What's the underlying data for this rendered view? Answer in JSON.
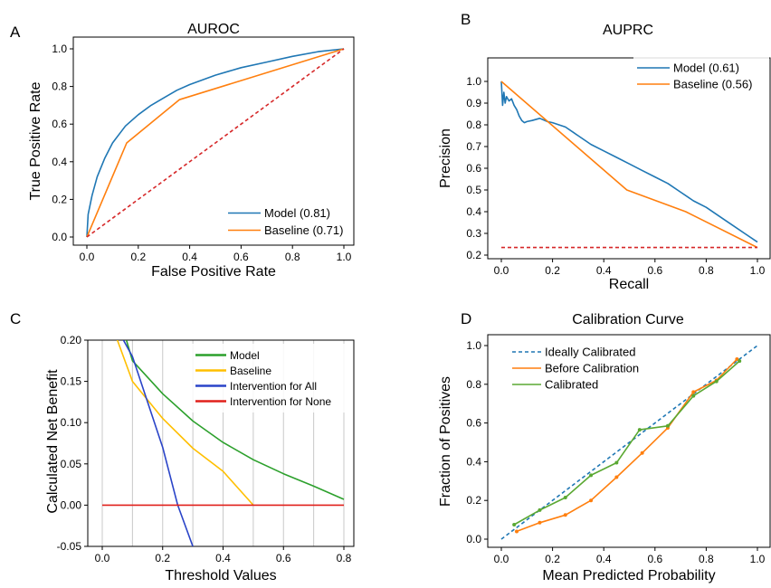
{
  "panels": {
    "A": {
      "letter": "A",
      "title": "AUROC",
      "xlabel": "False Positive Rate",
      "ylabel": "True Positive Rate"
    },
    "B": {
      "letter": "B",
      "title": "AUPRC",
      "xlabel": "Recall",
      "ylabel": "Precision"
    },
    "C": {
      "letter": "C",
      "title": "",
      "xlabel": "Threshold Values",
      "ylabel": "Calculated Net Benefit"
    },
    "D": {
      "letter": "D",
      "title": "Calibration Curve",
      "xlabel": "Mean Predicted Probability",
      "ylabel": "Fraction of Positives"
    }
  },
  "chart_data": [
    {
      "type": "line",
      "title": "AUROC",
      "xlabel": "False Positive Rate",
      "ylabel": "True Positive Rate",
      "xlim": [
        0,
        1
      ],
      "ylim": [
        0,
        1
      ],
      "xticks": [
        "0.0",
        "0.2",
        "0.4",
        "0.6",
        "0.8",
        "1.0"
      ],
      "yticks": [
        "0.0",
        "0.2",
        "0.4",
        "0.6",
        "0.8",
        "1.0"
      ],
      "legend_position": "lower-right",
      "series": [
        {
          "name": "Model (0.81)",
          "color": "#1f77b4",
          "x": [
            0,
            0.005,
            0.02,
            0.04,
            0.07,
            0.1,
            0.15,
            0.2,
            0.25,
            0.3,
            0.35,
            0.4,
            0.5,
            0.6,
            0.7,
            0.8,
            0.9,
            1.0
          ],
          "y": [
            0,
            0.12,
            0.22,
            0.32,
            0.42,
            0.5,
            0.59,
            0.65,
            0.7,
            0.74,
            0.78,
            0.81,
            0.86,
            0.9,
            0.93,
            0.96,
            0.985,
            1.0
          ]
        },
        {
          "name": "Baseline (0.71)",
          "color": "#ff7f0e",
          "x": [
            0,
            0.155,
            0.36,
            1.0
          ],
          "y": [
            0,
            0.5,
            0.73,
            1.0
          ]
        },
        {
          "name": "",
          "color": "#d62728",
          "dashed": true,
          "x": [
            0,
            1
          ],
          "y": [
            0,
            1
          ]
        }
      ]
    },
    {
      "type": "line",
      "title": "AUPRC",
      "xlabel": "Recall",
      "ylabel": "Precision",
      "xlim": [
        0,
        1
      ],
      "ylim": [
        0.2,
        1.0
      ],
      "xticks": [
        "0.0",
        "0.2",
        "0.4",
        "0.6",
        "0.8",
        "1.0"
      ],
      "yticks": [
        "0.2",
        "0.3",
        "0.4",
        "0.5",
        "0.6",
        "0.7",
        "0.8",
        "0.9",
        "1.0"
      ],
      "legend_position": "top-right",
      "series": [
        {
          "name": "Model (0.61)",
          "color": "#1f77b4",
          "x": [
            0,
            0.005,
            0.01,
            0.015,
            0.02,
            0.03,
            0.04,
            0.05,
            0.06,
            0.07,
            0.08,
            0.09,
            0.1,
            0.12,
            0.15,
            0.18,
            0.2,
            0.25,
            0.3,
            0.35,
            0.4,
            0.45,
            0.5,
            0.55,
            0.6,
            0.65,
            0.7,
            0.75,
            0.8,
            0.85,
            0.9,
            0.95,
            1.0
          ],
          "y": [
            1.0,
            0.89,
            0.95,
            0.9,
            0.93,
            0.91,
            0.92,
            0.89,
            0.87,
            0.84,
            0.82,
            0.81,
            0.815,
            0.82,
            0.83,
            0.815,
            0.81,
            0.79,
            0.75,
            0.71,
            0.68,
            0.65,
            0.62,
            0.59,
            0.56,
            0.53,
            0.49,
            0.45,
            0.42,
            0.38,
            0.34,
            0.3,
            0.26
          ]
        },
        {
          "name": "Baseline (0.56)",
          "color": "#ff7f0e",
          "x": [
            0,
            0.49,
            0.72,
            1.0
          ],
          "y": [
            1.0,
            0.5,
            0.4,
            0.235
          ]
        },
        {
          "name": "",
          "color": "#d62728",
          "dashed": true,
          "x": [
            0,
            1
          ],
          "y": [
            0.235,
            0.235
          ]
        }
      ]
    },
    {
      "type": "line",
      "title": "",
      "xlabel": "Threshold Values",
      "ylabel": "Calculated Net Benefit",
      "xlim": [
        -0.03,
        0.85
      ],
      "ylim": [
        -0.05,
        0.2
      ],
      "xticks": [
        "0.0",
        "0.2",
        "0.4",
        "0.6",
        "0.8"
      ],
      "yticks": [
        "-0.05",
        "0.00",
        "0.05",
        "0.10",
        "0.15",
        "0.20"
      ],
      "grid": "vertical",
      "legend_position": "top-right",
      "series": [
        {
          "name": "Model",
          "color": "#2ca02c",
          "x": [
            0.08,
            0.1,
            0.2,
            0.3,
            0.4,
            0.5,
            0.6,
            0.7,
            0.8
          ],
          "y": [
            0.2,
            0.175,
            0.135,
            0.102,
            0.076,
            0.055,
            0.038,
            0.023,
            0.007
          ]
        },
        {
          "name": "Baseline",
          "color": "#ffbf00",
          "x": [
            0.05,
            0.1,
            0.2,
            0.3,
            0.4,
            0.5
          ],
          "y": [
            0.2,
            0.15,
            0.105,
            0.069,
            0.041,
            0.0
          ]
        },
        {
          "name": "Intervention for All",
          "color": "#2a44c8",
          "x": [
            0.07,
            0.1,
            0.2,
            0.25,
            0.3
          ],
          "y": [
            0.2,
            0.18,
            0.07,
            0.0,
            -0.05
          ]
        },
        {
          "name": "Intervention for None",
          "color": "#e0201b",
          "x": [
            0,
            0.8
          ],
          "y": [
            0,
            0
          ]
        }
      ]
    },
    {
      "type": "line",
      "title": "Calibration Curve",
      "xlabel": "Mean Predicted Probability",
      "ylabel": "Fraction of Positives",
      "xlim": [
        -0.03,
        1.03
      ],
      "ylim": [
        -0.03,
        1.03
      ],
      "xticks": [
        "0.0",
        "0.2",
        "0.4",
        "0.6",
        "0.8",
        "1.0"
      ],
      "yticks": [
        "0.0",
        "0.2",
        "0.4",
        "0.6",
        "0.8",
        "1.0"
      ],
      "legend_position": "top-left",
      "series": [
        {
          "name": "Ideally Calibrated",
          "color": "#1f77b4",
          "dashed": true,
          "x": [
            0,
            1
          ],
          "y": [
            0,
            1
          ]
        },
        {
          "name": "Before Calibration",
          "color": "#ff7f0e",
          "markers": true,
          "x": [
            0.06,
            0.15,
            0.25,
            0.35,
            0.45,
            0.55,
            0.65,
            0.75,
            0.84,
            0.92
          ],
          "y": [
            0.04,
            0.085,
            0.125,
            0.2,
            0.32,
            0.445,
            0.575,
            0.76,
            0.82,
            0.93
          ]
        },
        {
          "name": "Calibrated",
          "color": "#5aa832",
          "markers": true,
          "x": [
            0.05,
            0.15,
            0.25,
            0.35,
            0.45,
            0.54,
            0.65,
            0.75,
            0.84,
            0.93
          ],
          "y": [
            0.075,
            0.15,
            0.215,
            0.33,
            0.395,
            0.565,
            0.585,
            0.74,
            0.815,
            0.92
          ]
        }
      ]
    }
  ]
}
